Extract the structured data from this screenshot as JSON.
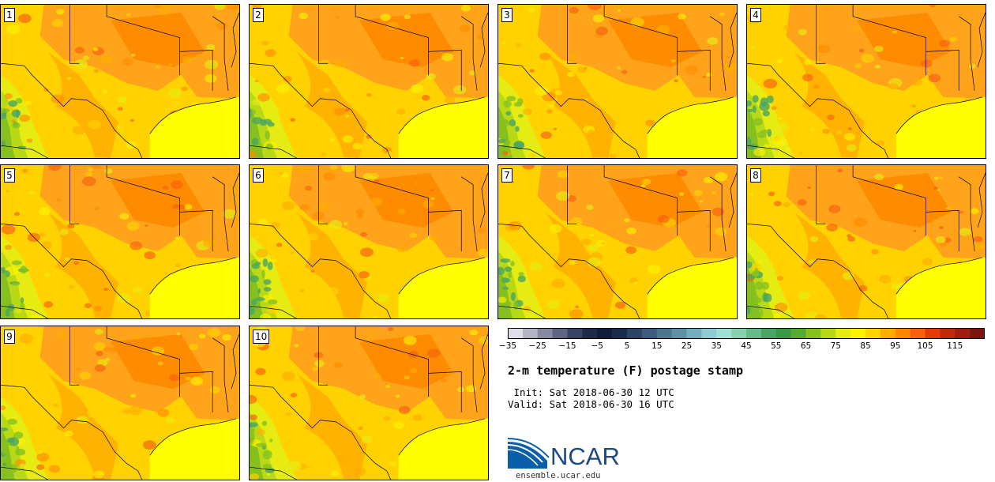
{
  "title": "2-m temperature (F) postage stamp",
  "init": " Init: Sat 2018-06-30 12 UTC",
  "valid": "Valid: Sat 2018-06-30 16 UTC",
  "logo": {
    "text": "NCAR",
    "site": "ensemble.ucar.edu"
  },
  "panels": [
    {
      "label": "1"
    },
    {
      "label": "2"
    },
    {
      "label": "3"
    },
    {
      "label": "4"
    },
    {
      "label": "5"
    },
    {
      "label": "6"
    },
    {
      "label": "7"
    },
    {
      "label": "8"
    },
    {
      "label": "9"
    },
    {
      "label": "10"
    }
  ],
  "colorbar": {
    "colors": [
      "#dedfe6",
      "#b3b5c4",
      "#878ba0",
      "#5f6580",
      "#3a4362",
      "#1d2a4a",
      "#0f1c3a",
      "#1a2c4c",
      "#2c4466",
      "#3e5c7e",
      "#4c7590",
      "#5d8fa6",
      "#74adbd",
      "#8fcbd0",
      "#9fe0d6",
      "#88d0b0",
      "#66bb88",
      "#4aa562",
      "#3a9844",
      "#55ab30",
      "#86c01f",
      "#b9d916",
      "#e6ec12",
      "#fff200",
      "#ffd400",
      "#ffae00",
      "#ff8800",
      "#f86010",
      "#e43a0a",
      "#c02a0a",
      "#a01e10",
      "#7e1410"
    ],
    "tick_labels": [
      "-35",
      "-25",
      "-15",
      "-5",
      "5",
      "15",
      "25",
      "35",
      "45",
      "55",
      "65",
      "75",
      "85",
      "95",
      "105",
      "115"
    ]
  },
  "colors": {
    "yellow": "#ffff00",
    "gulf": "#ffff00",
    "outline": "#000000"
  }
}
